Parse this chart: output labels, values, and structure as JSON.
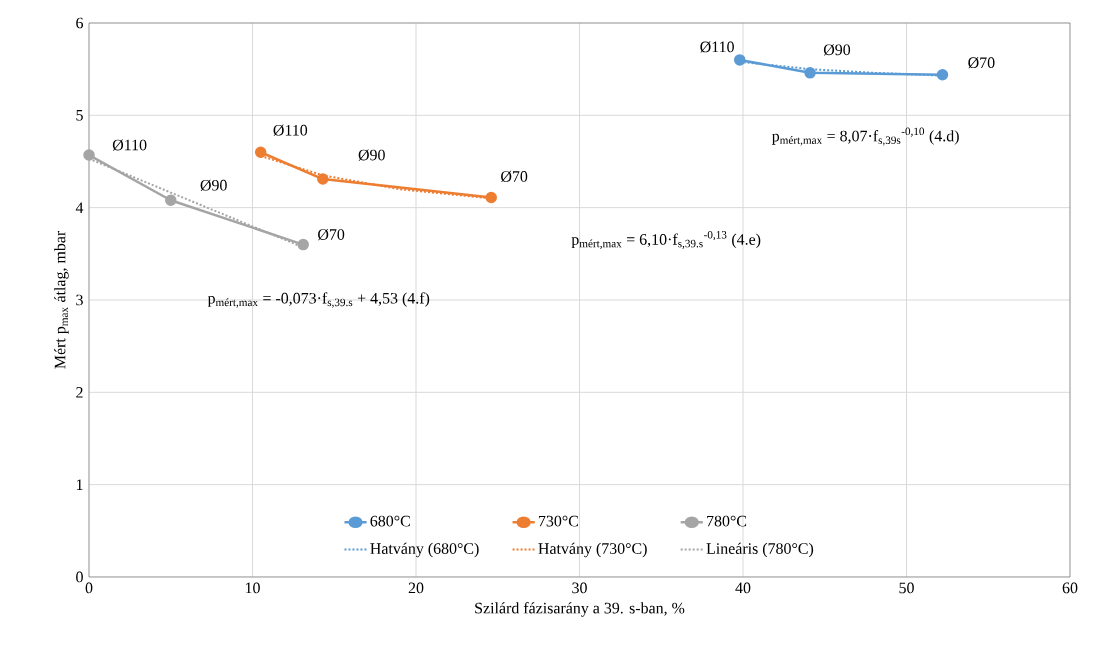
{
  "chart_data": {
    "type": "line",
    "xlabel": "Szilárd fázisarány a 39. s-ban, %",
    "ylabel": "Mért p$_{max}$ átlag, mbar",
    "xlim": [
      0,
      60
    ],
    "xticks": [
      0,
      10,
      20,
      30,
      40,
      50,
      60
    ],
    "ylim": [
      0,
      6
    ],
    "yticks": [
      0,
      1,
      2,
      3,
      4,
      5,
      6
    ],
    "grid": true,
    "legend": "bottom",
    "series": [
      {
        "name": "680°C",
        "color": "#5b9bd5",
        "marker": "circle",
        "line_style": "solid",
        "x": [
          39.8,
          44.1,
          52.2
        ],
        "values": [
          5.6,
          5.46,
          5.44
        ]
      },
      {
        "name": "730°C",
        "color": "#ed7d31",
        "marker": "circle",
        "line_style": "solid",
        "x": [
          10.5,
          14.3,
          24.6
        ],
        "values": [
          4.6,
          4.31,
          4.11
        ]
      },
      {
        "name": "780°C",
        "color": "#a5a5a5",
        "marker": "circle",
        "line_style": "solid",
        "x": [
          0,
          5.0,
          13.1
        ],
        "values": [
          4.57,
          4.08,
          3.6
        ]
      },
      {
        "name": "Hatvány (680°C)",
        "color": "#5b9bd5",
        "marker": "none",
        "line_style": "dotted",
        "x": [
          39.8,
          44.1,
          48,
          52.2
        ],
        "values": [
          5.58,
          5.5,
          5.46,
          5.43
        ]
      },
      {
        "name": "Hatvány (730°C)",
        "color": "#ed7d31",
        "marker": "none",
        "line_style": "dotted",
        "x": [
          10.5,
          14.3,
          19,
          24.6
        ],
        "values": [
          4.56,
          4.35,
          4.2,
          4.1
        ]
      },
      {
        "name": "Lineáris (780°C)",
        "color": "#a5a5a5",
        "marker": "none",
        "line_style": "dotted",
        "x": [
          0,
          13.1
        ],
        "values": [
          4.53,
          3.57
        ]
      }
    ],
    "annotations": [
      {
        "text": "Ø110",
        "x": 39.8,
        "y": 5.6
      },
      {
        "text": "Ø90",
        "x": 44.1,
        "y": 5.46
      },
      {
        "text": "Ø70",
        "x": 52.2,
        "y": 5.44
      },
      {
        "text": "Ø110",
        "x": 10.5,
        "y": 4.6
      },
      {
        "text": "Ø90",
        "x": 14.3,
        "y": 4.31
      },
      {
        "text": "Ø70",
        "x": 24.6,
        "y": 4.11
      },
      {
        "text": "Ø110",
        "x": 0,
        "y": 4.57
      },
      {
        "text": "Ø90",
        "x": 5.0,
        "y": 4.08
      },
      {
        "text": "Ø70",
        "x": 13.1,
        "y": 3.6
      },
      "p$_{mért,max}$ = 8,07·f$_{s,39s}$$^{-0,10}$ (4.d)",
      "p$_{mért,max}$ = 6,10·f$_{s,39.s}$$^{-0,13}$ (4.e)",
      "p$_{mért,max}$ = -0,073·f$_{s,39.s}$ + 4,53 (4.f)"
    ]
  }
}
